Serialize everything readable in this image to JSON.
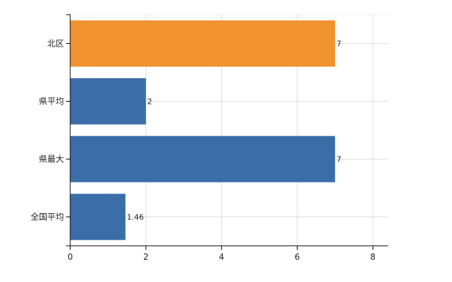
{
  "chart_data": {
    "type": "bar",
    "orientation": "horizontal",
    "title": "",
    "xlabel": "",
    "ylabel": "",
    "categories": [
      "北区",
      "県平均",
      "県最大",
      "全国平均"
    ],
    "values": [
      7,
      2,
      7,
      1.46
    ],
    "value_labels": [
      "7",
      "2",
      "7",
      "1.46"
    ],
    "bar_colors": [
      "#f0922e",
      "#3b6ea8",
      "#3b6ea8",
      "#3b6ea8"
    ],
    "xlim": [
      0,
      8.4
    ],
    "xticks": [
      0,
      2,
      4,
      6,
      8
    ],
    "xtick_labels": [
      "0",
      "2",
      "4",
      "6",
      "8"
    ],
    "grid": true,
    "legend": "none"
  }
}
